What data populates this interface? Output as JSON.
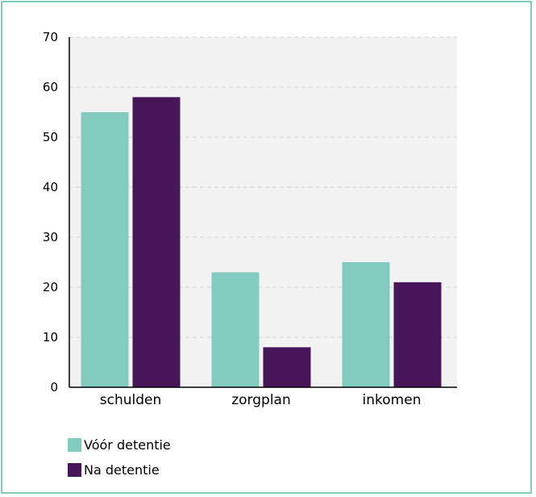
{
  "chart_data": {
    "type": "bar",
    "categories": [
      "schulden",
      "zorgplan",
      "inkomen"
    ],
    "series": [
      {
        "name": "Vóór detentie",
        "values": [
          55,
          23,
          25
        ],
        "color": "#84cbbf"
      },
      {
        "name": "Na detentie",
        "values": [
          58,
          8,
          21
        ],
        "color": "#471659"
      }
    ],
    "title": "",
    "xlabel": "",
    "ylabel": "",
    "ylim": [
      0,
      70
    ],
    "yticks": [
      "0",
      "10",
      "20",
      "30",
      "40",
      "50",
      "60",
      "70"
    ],
    "grid": true,
    "legend_position": "bottom-left"
  },
  "colors": {
    "frame_border": "#84cbbf",
    "plot_background": "#f2f2f2",
    "gridline": "#d4d4d4"
  }
}
